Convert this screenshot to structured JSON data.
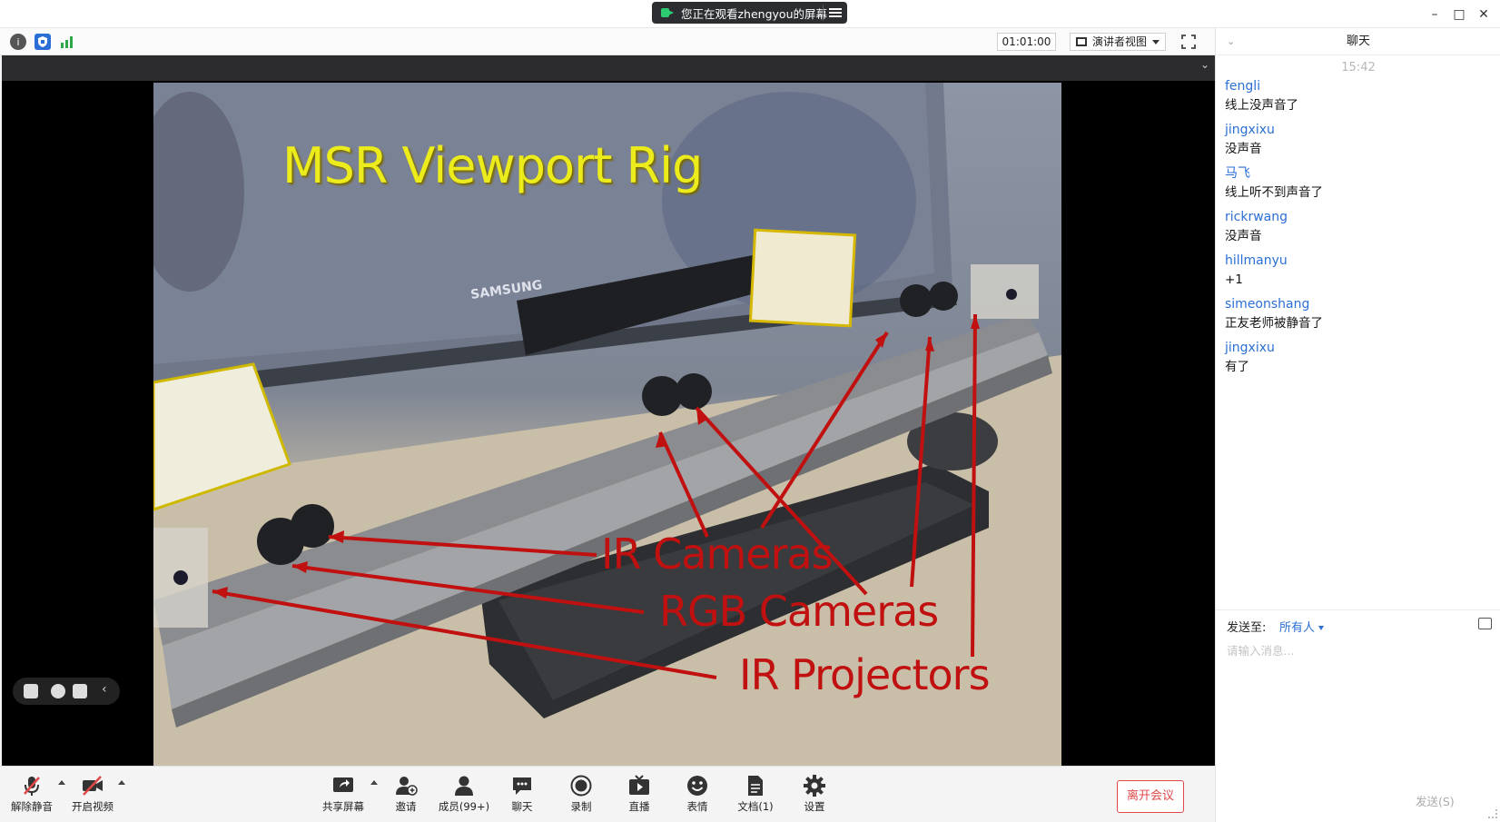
{
  "window": {
    "share_banner": "您正在观看zhengyou的屏幕"
  },
  "toolbar": {
    "timer": "01:01:00",
    "view_mode": "演讲者视图"
  },
  "slide": {
    "title": "MSR Viewport Rig",
    "monitor_brand": "SAMSUNG",
    "labels": {
      "ir_cameras": "IR Cameras",
      "rgb_cameras": "RGB Cameras",
      "ir_projectors": "IR Projectors"
    }
  },
  "bottom_bar": {
    "unmute": "解除静音",
    "start_video": "开启视频",
    "share_screen": "共享屏幕",
    "invite": "邀请",
    "members": "成员(99+)",
    "chat": "聊天",
    "record": "录制",
    "live": "直播",
    "emoji": "表情",
    "docs": "文档(1)",
    "settings": "设置",
    "leave": "离开会议"
  },
  "chat": {
    "title": "聊天",
    "time": "15:42",
    "messages": [
      {
        "sender": "fengli",
        "text": "线上没声音了"
      },
      {
        "sender": "jingxixu",
        "text": "没声音"
      },
      {
        "sender": "马飞",
        "text": "线上听不到声音了"
      },
      {
        "sender": "rickrwang",
        "text": "没声音"
      },
      {
        "sender": "hillmanyu",
        "text": "+1"
      },
      {
        "sender": "simeonshang",
        "text": "正友老师被静音了"
      },
      {
        "sender": "jingxixu",
        "text": "有了"
      }
    ],
    "send_to_label": "发送至:",
    "send_to_value": "所有人",
    "input_placeholder": "请输入消息...",
    "send_button": "发送(S)"
  },
  "colors": {
    "accent_blue": "#2b6fd6",
    "leave_red": "#e04848",
    "slide_title_yellow": "#ecec1c",
    "slide_label_red": "#c01010"
  }
}
